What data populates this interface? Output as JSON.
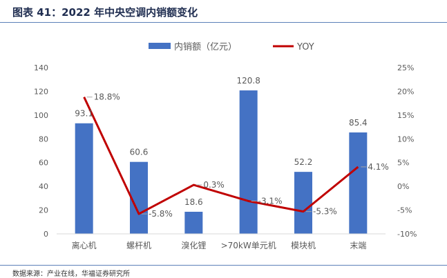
{
  "header": {
    "title": "图表 41：2022 年中央空调内销额变化"
  },
  "footer": {
    "source": "数据来源：产业在线，华福证券研究所"
  },
  "colors": {
    "bar": "#4472c4",
    "line": "#c00000",
    "text": "#595959",
    "axis": "#d9d9d9"
  },
  "chart_data": {
    "type": "bar",
    "categories": [
      "离心机",
      "螺杆机",
      "溴化锂",
      ">70kW单元机",
      "模块机",
      "末端"
    ],
    "series": [
      {
        "name": "内销额（亿元）",
        "type": "bar",
        "axis": "left",
        "values": [
          93.1,
          60.6,
          18.6,
          120.8,
          52.2,
          85.4
        ],
        "labels": [
          "93.1",
          "60.6",
          "18.6",
          "120.8",
          "52.2",
          "85.4"
        ]
      },
      {
        "name": "YOY",
        "type": "line",
        "axis": "right",
        "values": [
          18.8,
          -5.8,
          0.3,
          -3.1,
          -5.3,
          4.1
        ],
        "labels": [
          "18.8%",
          "-5.8%",
          "0.3%",
          "-3.1%",
          "-5.3%",
          "4.1%"
        ]
      }
    ],
    "y_left": {
      "min": 0,
      "max": 140,
      "ticks": [
        "0",
        "20",
        "40",
        "60",
        "80",
        "100",
        "120",
        "140"
      ]
    },
    "y_right": {
      "min": -10,
      "max": 25,
      "ticks": [
        "-10%",
        "-5%",
        "0%",
        "5%",
        "10%",
        "15%",
        "20%",
        "25%"
      ]
    },
    "legend_position": "top",
    "grid": false
  }
}
